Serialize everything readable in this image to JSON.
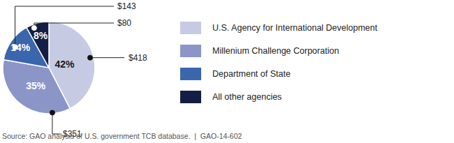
{
  "chart_data": {
    "type": "pie",
    "categories": [
      "U.S. Agency for International Development",
      "Millenium Challenge Corporation",
      "Department of State",
      "All other agencies"
    ],
    "values": [
      42,
      35,
      14,
      8
    ],
    "value_labels": [
      "42%",
      "35%",
      "14%",
      "8%"
    ],
    "amounts": [
      418,
      351,
      143,
      80
    ],
    "amount_labels": [
      "$418",
      "$351",
      "$143",
      "$80"
    ],
    "colors": [
      "#c7cae3",
      "#8c95c8",
      "#3a66ad",
      "#141d44"
    ],
    "data_labels": true,
    "legend": "right",
    "source": "Source: GAO analysis of U.S. government TCB database.  |  GAO-14-602"
  }
}
